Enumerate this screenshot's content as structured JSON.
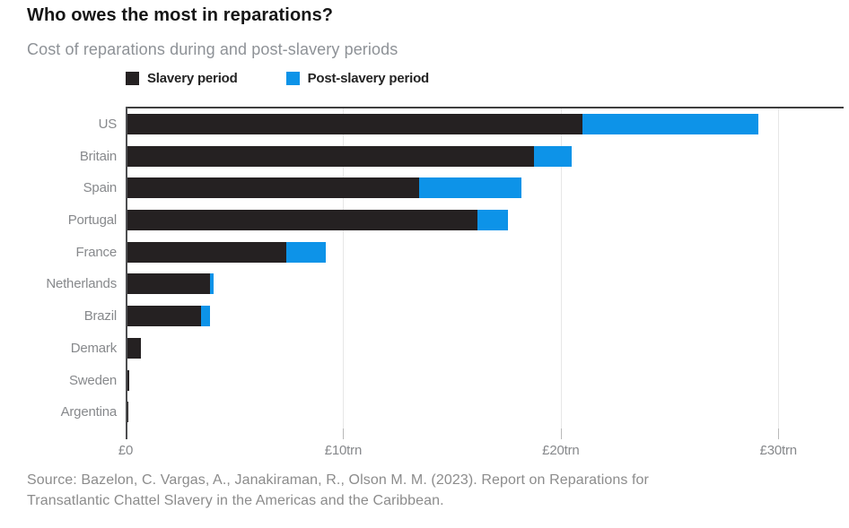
{
  "title": "Who owes the most in reparations?",
  "subtitle": "Cost of reparations during and post-slavery periods",
  "legend": [
    {
      "label": "Slavery period",
      "color": "#252122"
    },
    {
      "label": "Post-slavery period",
      "color": "#0d93e8"
    }
  ],
  "source_line1": "Source: Bazelon, C. Vargas, A., Janakiraman, R., Olson M. M. (2023). Report on Reparations for",
  "source_line2": "Transatlantic Chattel Slavery in the Americas and the Caribbean.",
  "chart_data": {
    "type": "bar",
    "orientation": "horizontal",
    "stacked": true,
    "title": "Who owes the most in reparations?",
    "subtitle": "Cost of reparations during and post-slavery periods",
    "unit": "£trn",
    "categories": [
      "US",
      "Britain",
      "Spain",
      "Portugal",
      "France",
      "Netherlands",
      "Brazil",
      "Demark",
      "Sweden",
      "Argentina"
    ],
    "series": [
      {
        "name": "Slavery period",
        "color": "#252122",
        "values": [
          20.9,
          18.7,
          13.4,
          16.1,
          7.3,
          3.8,
          3.4,
          0.6,
          0.07,
          0.04
        ]
      },
      {
        "name": "Post-slavery period",
        "color": "#0d93e8",
        "values": [
          8.1,
          1.7,
          4.7,
          1.4,
          1.8,
          0.15,
          0.4,
          0,
          0,
          0
        ]
      }
    ],
    "x_tick_labels": [
      "£0",
      "£10trn",
      "£20trn",
      "£30trn"
    ],
    "x_tick_values": [
      0,
      10,
      20,
      30
    ],
    "xlim": [
      0,
      33
    ],
    "grid": "vertical-light",
    "legend_position": "top"
  }
}
